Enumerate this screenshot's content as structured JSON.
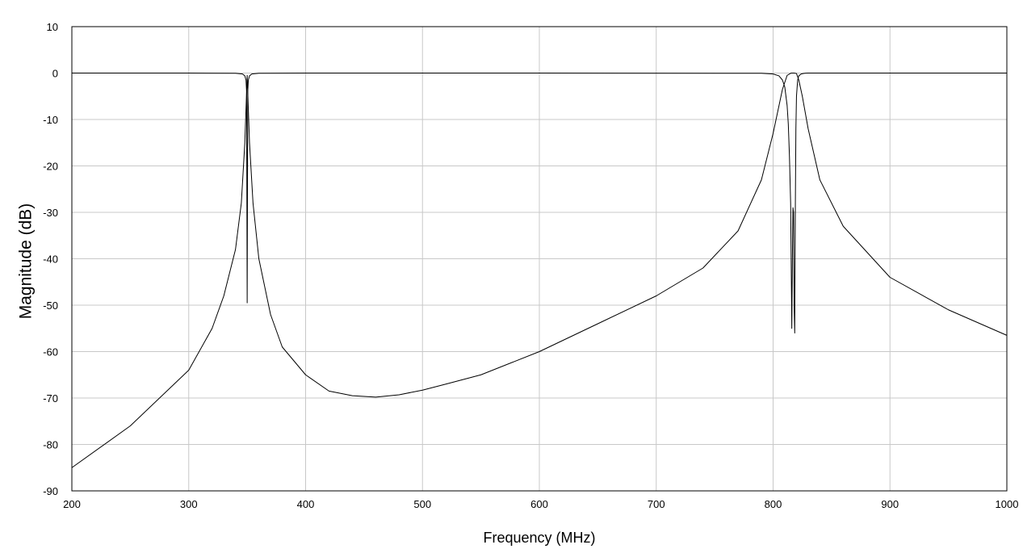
{
  "chart_data": {
    "type": "line",
    "title": "",
    "xlabel": "Frequency (MHz)",
    "ylabel": "Magnitude (dB)",
    "xlim": [
      200,
      1000
    ],
    "ylim": [
      -90,
      10
    ],
    "x_ticks": [
      200,
      300,
      400,
      500,
      600,
      700,
      800,
      900,
      1000
    ],
    "y_ticks": [
      10,
      0,
      -10,
      -20,
      -30,
      -40,
      -50,
      -60,
      -70,
      -80,
      -90
    ],
    "x_tick_labels": [
      "200",
      "300",
      "400",
      "500",
      "600",
      "700",
      "800",
      "900",
      "1000"
    ],
    "y_tick_labels": [
      "10",
      "0",
      "-10",
      "-20",
      "-30",
      "-40",
      "-50",
      "-60",
      "-70",
      "-80",
      "-90"
    ],
    "grid": true,
    "legend": "none",
    "line_color": "#000000",
    "grid_color": "#c8c8c8",
    "series": [
      {
        "x": [
          200,
          250,
          300,
          320,
          330,
          340,
          345,
          348,
          350,
          352,
          355,
          360,
          370,
          380,
          400,
          420,
          440,
          460,
          480,
          500,
          520,
          550,
          600,
          650,
          700,
          740,
          770,
          790,
          800,
          808,
          812,
          815,
          816,
          818,
          820,
          822,
          825,
          830,
          840,
          860,
          900,
          950,
          1000
        ],
        "values": [
          -85,
          -76,
          -64,
          -55,
          -48,
          -38,
          -28,
          -15,
          -0.5,
          -15,
          -28,
          -40,
          -52,
          -59,
          -65,
          -68.5,
          -69.5,
          -69.8,
          -69.3,
          -68.3,
          -67,
          -65,
          -60,
          -54,
          -48,
          -42,
          -34,
          -23,
          -13,
          -3.5,
          -0.5,
          -0.05,
          0,
          0,
          -0.1,
          -1.5,
          -5,
          -12,
          -23,
          -33,
          -44,
          -51,
          -56.5
        ]
      },
      {
        "x": [
          200,
          300,
          340,
          346,
          348,
          349,
          349.5,
          350,
          350.5,
          351,
          352,
          354,
          360,
          400,
          600,
          790,
          800,
          805,
          808,
          810,
          812,
          813,
          814,
          815,
          816,
          816.5,
          817,
          817.5,
          818,
          818.5,
          819,
          819.5,
          820,
          821,
          822,
          824,
          826,
          828,
          830,
          835,
          850,
          900,
          1000
        ],
        "values": [
          0,
          0,
          -0.05,
          -0.2,
          -0.6,
          -1.5,
          -4,
          -49.5,
          -4,
          -1.5,
          -0.6,
          -0.2,
          -0.05,
          0,
          0,
          -0.05,
          -0.2,
          -0.6,
          -1.5,
          -3,
          -7,
          -11,
          -18,
          -28,
          -55,
          -40,
          -29,
          -30,
          -50,
          -56,
          -30,
          -12,
          -5,
          -1.5,
          -0.6,
          -0.2,
          -0.08,
          -0.03,
          -0.01,
          0,
          0,
          0,
          0
        ]
      }
    ]
  }
}
